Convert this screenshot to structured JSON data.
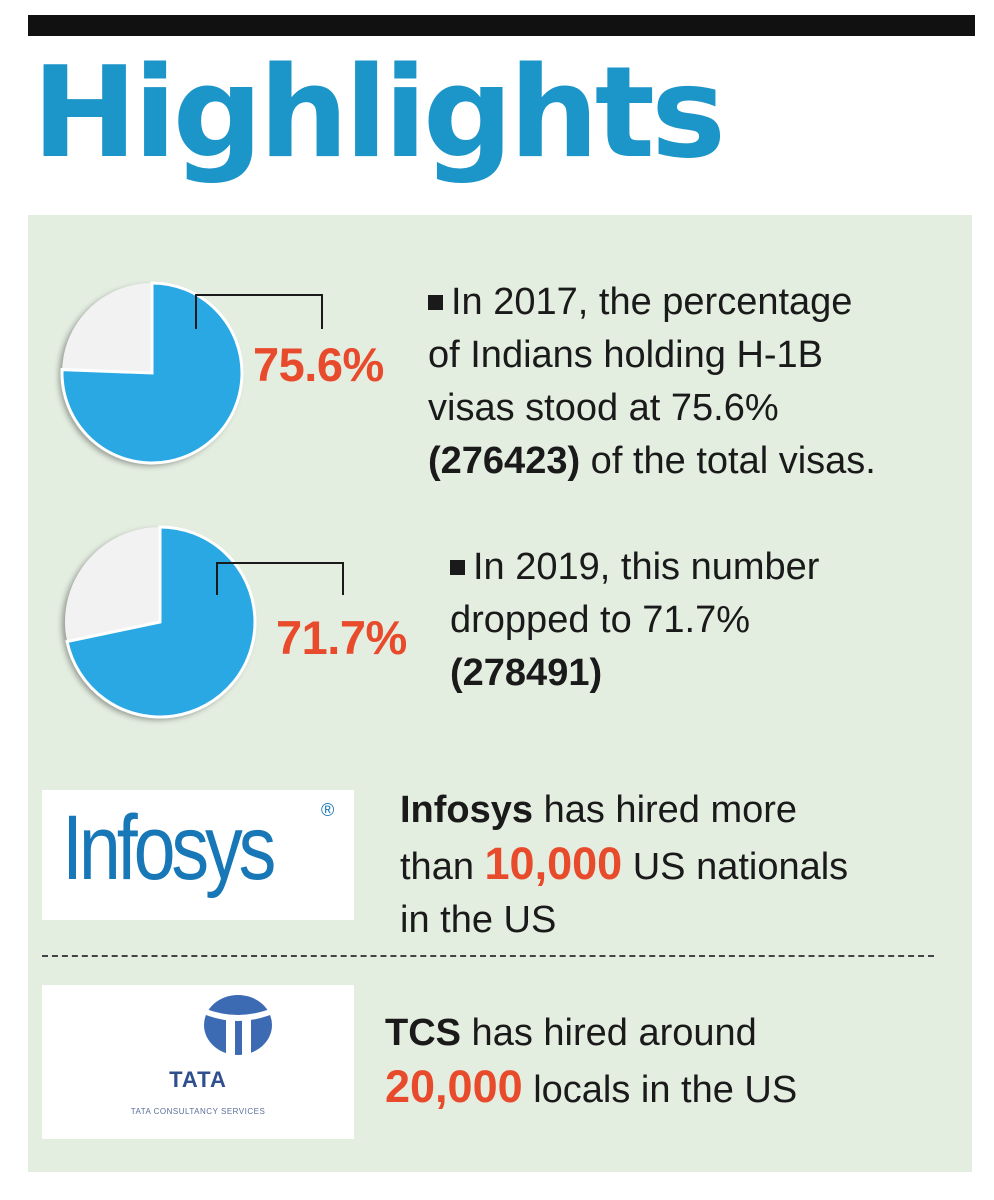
{
  "header": {
    "title": "Highlights"
  },
  "colors": {
    "title": "#1c95c9",
    "pie_filled": "#29a8e4",
    "pie_rest": "#f2f2f2",
    "accent": "#e84a2c",
    "panel": "#e3ede0"
  },
  "chart_data": [
    {
      "type": "pie",
      "title": "",
      "slices": [
        {
          "label": "75.6%",
          "value": 75.6
        },
        {
          "value": 24.4
        }
      ],
      "annotation": "75.6%"
    },
    {
      "type": "pie",
      "title": "",
      "slices": [
        {
          "label": "71.7%",
          "value": 71.7
        },
        {
          "value": 28.3
        }
      ],
      "annotation": "71.7%"
    }
  ],
  "facts": {
    "stat2017": {
      "line1": "In 2017, the percentage",
      "line2": "of Indians holding H-1B",
      "line3": "visas stood at 75.6%",
      "count": "(276423)",
      "line4_rest": " of the total visas."
    },
    "stat2019": {
      "line1": "In 2019, this number",
      "line2": "dropped to 71.7%",
      "count": "(278491)"
    },
    "infosys": {
      "company": "Infosys",
      "line1_rest": " has hired more",
      "line2_pre": "than ",
      "number": "10,000",
      "line2_post": " US nationals",
      "line3": "in the US"
    },
    "tcs": {
      "company": "TCS",
      "line1_rest": " has hired around",
      "number": "20,000",
      "line2_post": " locals in the US"
    }
  },
  "logos": {
    "infosys": {
      "icon": "infosys-logo",
      "text": "Infosys",
      "reg": "®"
    },
    "tata": {
      "icon": "tata-logo",
      "text": "TATA",
      "sub": "TATA CONSULTANCY SERVICES"
    }
  }
}
